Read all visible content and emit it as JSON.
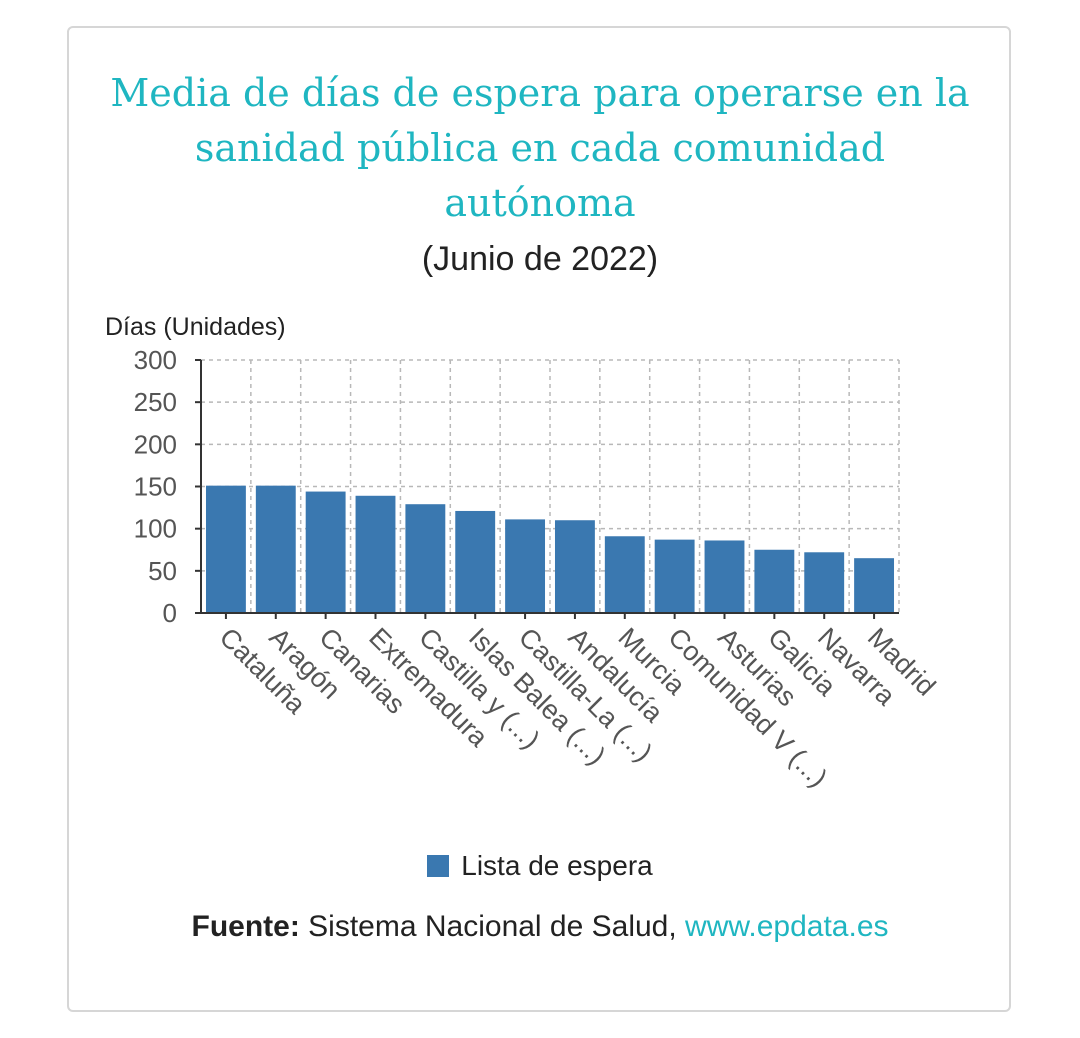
{
  "colors": {
    "title": "#1fb6c1",
    "bar": "#3a78b0",
    "link": "#1fb6c1",
    "grid": "#b8b8b8"
  },
  "chart_data": {
    "type": "bar",
    "title": "Media de días de espera para operarse en la sanidad pública en cada comunidad autónoma",
    "subtitle": "(Junio de 2022)",
    "ylabel": "Días (Unidades)",
    "xlabel": "",
    "ylim": [
      0,
      300
    ],
    "yticks": [
      0,
      50,
      100,
      150,
      200,
      250,
      300
    ],
    "grid": true,
    "legend_position": "bottom",
    "categories": [
      "Cataluña",
      "Aragón",
      "Canarias",
      "Extremadura",
      "Castilla y (...)",
      "Islas Balea (...)",
      "Castilla-La (...)",
      "Andalucía",
      "Murcia",
      "Comunidad V (...)",
      "Asturias",
      "Galicia",
      "Navarra",
      "Madrid"
    ],
    "series": [
      {
        "name": "Lista de espera",
        "values": [
          151,
          151,
          144,
          139,
          129,
          121,
          111,
          110,
          91,
          87,
          86,
          75,
          72,
          65
        ]
      }
    ]
  },
  "source": {
    "label": "Fuente:",
    "text": " Sistema Nacional de Salud, ",
    "link": "www.epdata.es"
  }
}
